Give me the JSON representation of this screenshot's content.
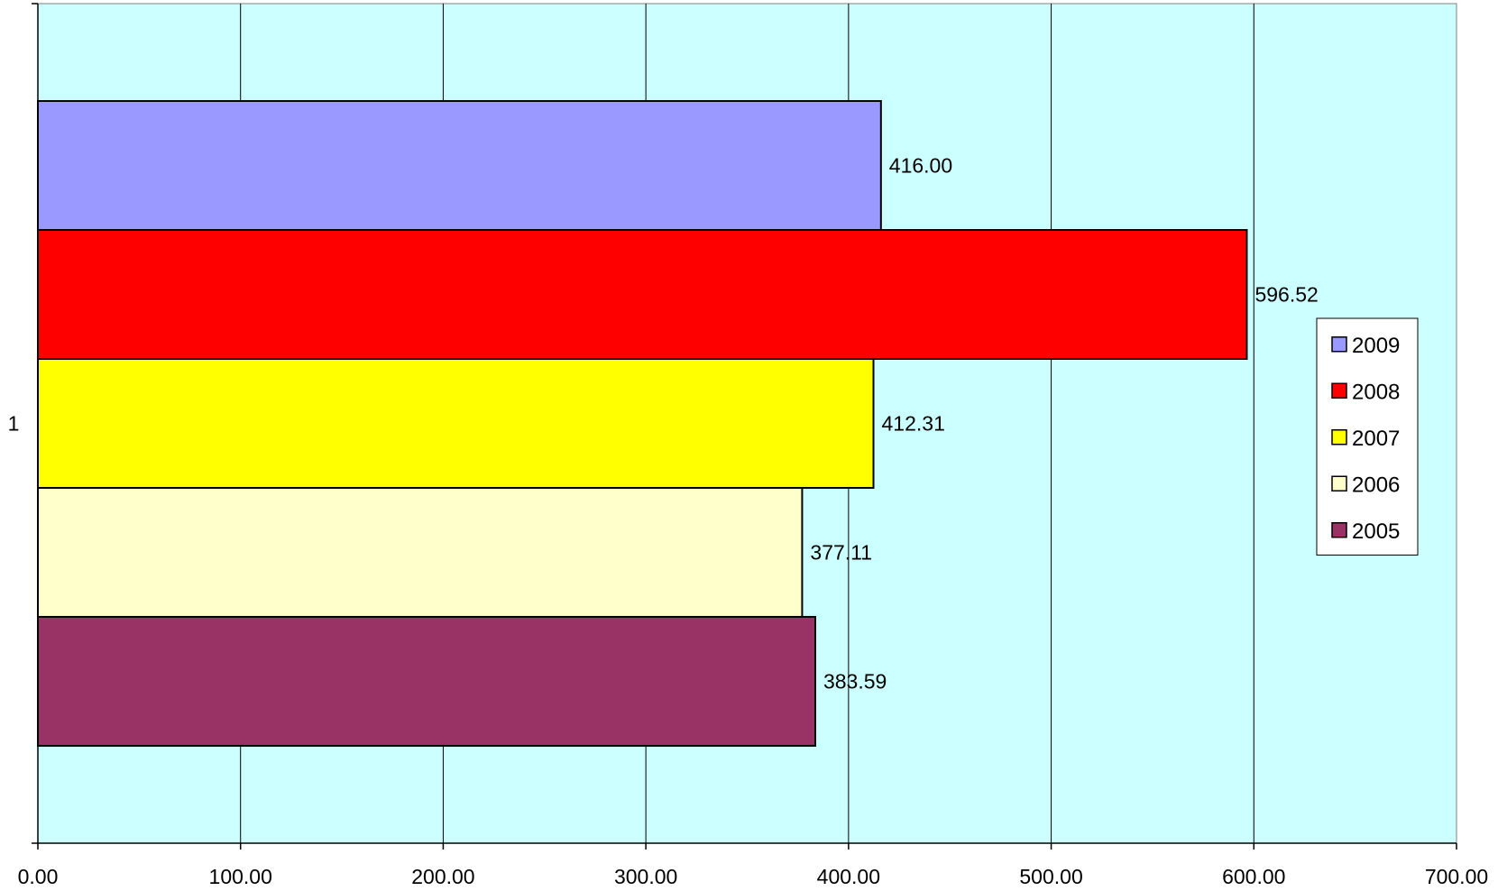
{
  "chart_data": {
    "type": "bar",
    "orientation": "horizontal",
    "categories": [
      "1"
    ],
    "series": [
      {
        "name": "2009",
        "values": [
          416.0
        ],
        "label": "416.00",
        "color": "#9999ff"
      },
      {
        "name": "2008",
        "values": [
          596.52
        ],
        "label": "596.52",
        "color": "#ff0000"
      },
      {
        "name": "2007",
        "values": [
          412.31
        ],
        "label": "412.31",
        "color": "#ffff00"
      },
      {
        "name": "2006",
        "values": [
          377.11
        ],
        "label": "377.11",
        "color": "#ffffcc"
      },
      {
        "name": "2005",
        "values": [
          383.59
        ],
        "label": "383.59",
        "color": "#993366"
      }
    ],
    "xlim": [
      0,
      700
    ],
    "x_ticks": [
      0,
      100,
      200,
      300,
      400,
      500,
      600,
      700
    ],
    "x_tick_labels": [
      "0.00",
      "100.00",
      "200.00",
      "300.00",
      "400.00",
      "500.00",
      "600.00",
      "700.00"
    ],
    "grid": true,
    "legend_position": "right",
    "plot_background": "#ccffff",
    "title": "",
    "xlabel": "",
    "ylabel": ""
  }
}
